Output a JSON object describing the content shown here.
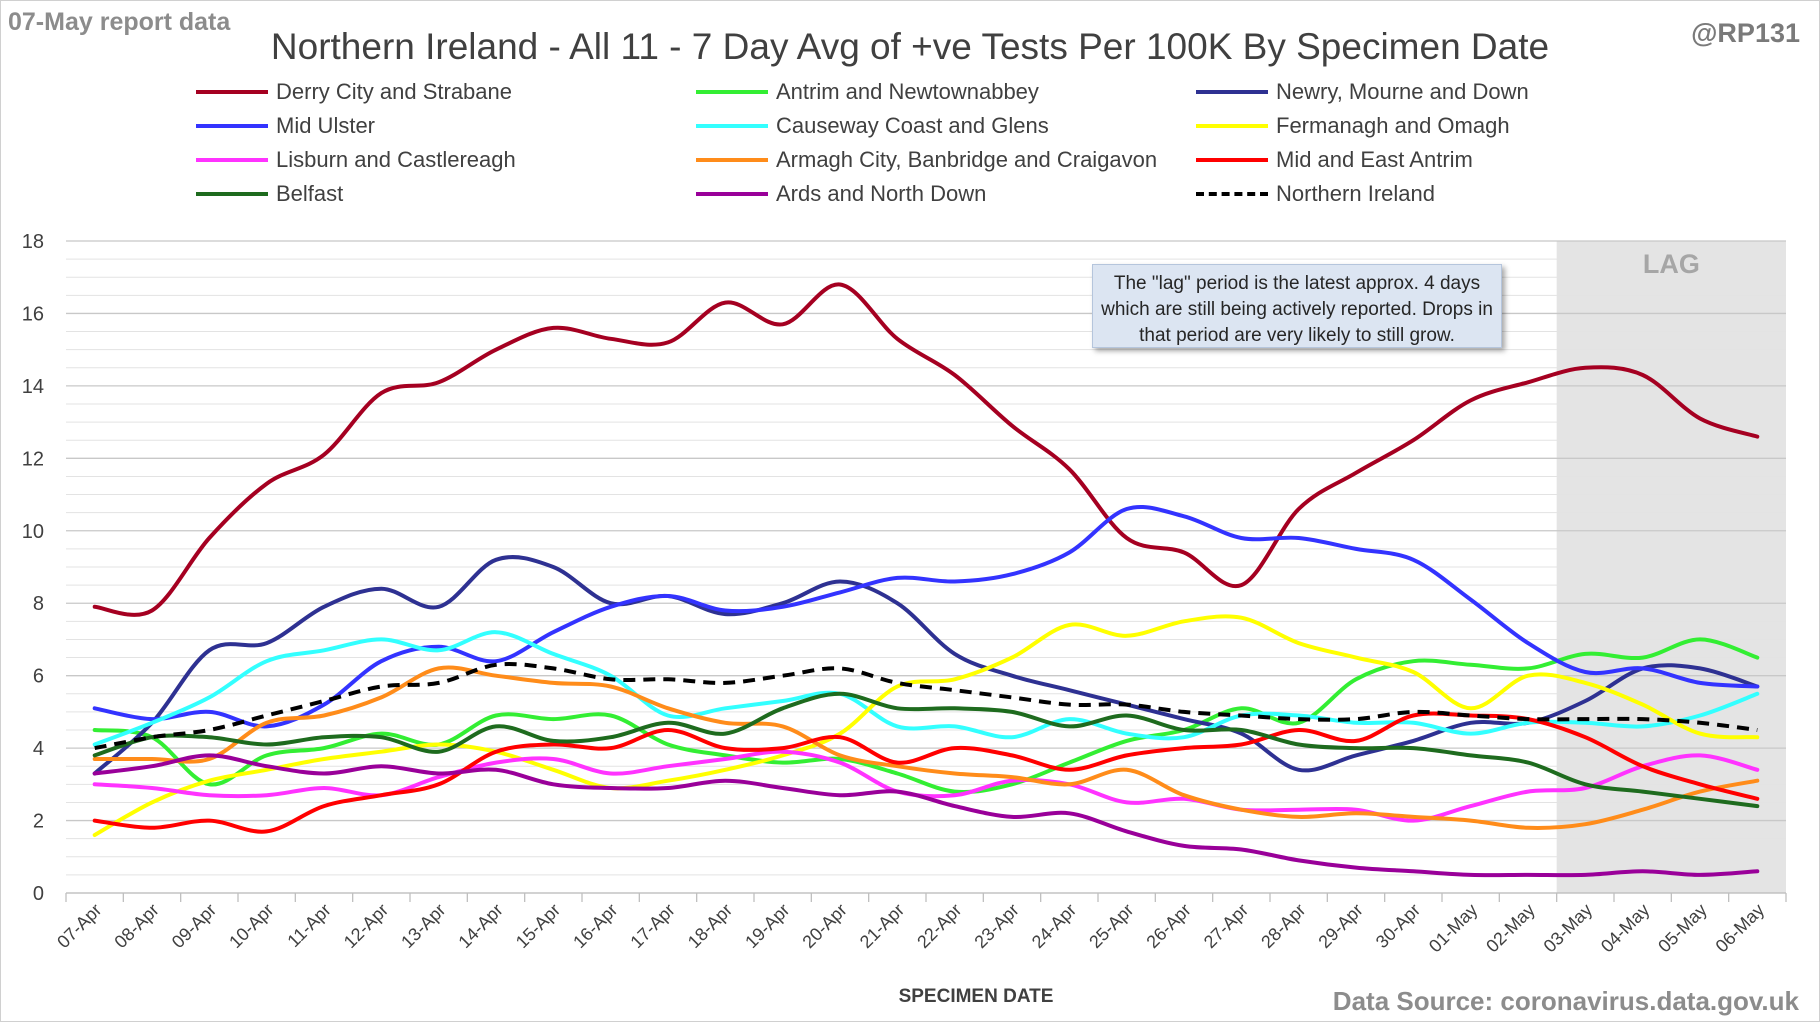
{
  "header": {
    "report_label": "07-May report data",
    "author_handle": "@RP131",
    "title": "Northern Ireland - All 11 - 7 Day Avg of +ve Tests Per 100K By Specimen Date",
    "source": "Data Source: coronavirus.data.gov.uk"
  },
  "annotations": {
    "lag_label": "LAG",
    "lag_note": "The \"lag\" period is the latest approx. 4 days which are still being actively reported.  Drops in that period are very likely to still grow."
  },
  "chart_data": {
    "type": "line",
    "title": "Northern Ireland - All 11 - 7 Day Avg of +ve Tests Per 100K By Specimen Date",
    "xlabel": "SPECIMEN DATE",
    "ylabel": "",
    "ylim": [
      0,
      18
    ],
    "yticks": [
      0,
      2,
      4,
      6,
      8,
      10,
      12,
      14,
      16,
      18
    ],
    "grid": true,
    "legend_position": "top",
    "lag_range": [
      "03-May",
      "06-May"
    ],
    "categories": [
      "07-Apr",
      "08-Apr",
      "09-Apr",
      "10-Apr",
      "11-Apr",
      "12-Apr",
      "13-Apr",
      "14-Apr",
      "15-Apr",
      "16-Apr",
      "17-Apr",
      "18-Apr",
      "19-Apr",
      "20-Apr",
      "21-Apr",
      "22-Apr",
      "23-Apr",
      "24-Apr",
      "25-Apr",
      "26-Apr",
      "27-Apr",
      "28-Apr",
      "29-Apr",
      "30-Apr",
      "01-May",
      "02-May",
      "03-May",
      "04-May",
      "05-May",
      "06-May"
    ],
    "series": [
      {
        "name": "Derry City and Strabane",
        "color": "#a50021",
        "dash": false,
        "values": [
          7.9,
          7.8,
          9.8,
          11.3,
          12.1,
          13.8,
          14.1,
          15.0,
          15.6,
          15.3,
          15.2,
          16.3,
          15.7,
          16.8,
          15.3,
          14.3,
          12.9,
          11.7,
          9.8,
          9.4,
          8.5,
          10.6,
          11.6,
          12.5,
          13.6,
          14.1,
          14.5,
          14.3,
          13.1,
          12.6
        ]
      },
      {
        "name": "Antrim and Newtownabbey",
        "color": "#33ee33",
        "dash": false,
        "values": [
          4.5,
          4.3,
          3.0,
          3.8,
          4.0,
          4.4,
          4.1,
          4.9,
          4.8,
          4.9,
          4.1,
          3.8,
          3.6,
          3.7,
          3.3,
          2.8,
          3.0,
          3.6,
          4.2,
          4.5,
          5.1,
          4.7,
          5.9,
          6.4,
          6.3,
          6.2,
          6.6,
          6.5,
          7.0,
          6.5
        ]
      },
      {
        "name": "Newry, Mourne and Down",
        "color": "#2e3192",
        "dash": false,
        "values": [
          3.3,
          4.7,
          6.7,
          6.9,
          7.9,
          8.4,
          7.9,
          9.2,
          9.0,
          8.0,
          8.2,
          7.7,
          8.0,
          8.6,
          8.0,
          6.6,
          6.0,
          5.6,
          5.2,
          4.8,
          4.4,
          3.4,
          3.8,
          4.2,
          4.7,
          4.7,
          5.3,
          6.2,
          6.2,
          5.7
        ]
      },
      {
        "name": "Mid Ulster",
        "color": "#3333ff",
        "dash": false,
        "values": [
          5.1,
          4.8,
          5.0,
          4.6,
          5.2,
          6.4,
          6.8,
          6.4,
          7.2,
          7.9,
          8.2,
          7.8,
          7.9,
          8.3,
          8.7,
          8.6,
          8.8,
          9.4,
          10.6,
          10.4,
          9.8,
          9.8,
          9.5,
          9.2,
          8.1,
          6.9,
          6.1,
          6.2,
          5.8,
          5.7
        ]
      },
      {
        "name": "Causeway Coast and Glens",
        "color": "#33ffff",
        "dash": false,
        "values": [
          4.1,
          4.7,
          5.4,
          6.4,
          6.7,
          7.0,
          6.7,
          7.2,
          6.6,
          6.0,
          4.9,
          5.1,
          5.3,
          5.5,
          4.6,
          4.6,
          4.3,
          4.8,
          4.4,
          4.3,
          4.9,
          4.9,
          4.7,
          4.7,
          4.4,
          4.7,
          4.7,
          4.6,
          4.9,
          5.5
        ]
      },
      {
        "name": "Fermanagh and Omagh",
        "color": "#ffff00",
        "dash": false,
        "values": [
          1.6,
          2.5,
          3.1,
          3.4,
          3.7,
          3.9,
          4.1,
          3.9,
          3.4,
          2.9,
          3.1,
          3.4,
          3.8,
          4.4,
          5.7,
          5.9,
          6.5,
          7.4,
          7.1,
          7.5,
          7.6,
          6.9,
          6.5,
          6.1,
          5.1,
          6.0,
          5.8,
          5.2,
          4.4,
          4.3
        ]
      },
      {
        "name": "Lisburn and Castlereagh",
        "color": "#ff33ff",
        "dash": false,
        "values": [
          3.0,
          2.9,
          2.7,
          2.7,
          2.9,
          2.7,
          3.2,
          3.6,
          3.7,
          3.3,
          3.5,
          3.7,
          3.9,
          3.6,
          2.8,
          2.7,
          3.1,
          3.0,
          2.5,
          2.6,
          2.3,
          2.3,
          2.3,
          2.0,
          2.4,
          2.8,
          2.9,
          3.5,
          3.8,
          3.4
        ]
      },
      {
        "name": "Armagh City, Banbridge and Craigavon",
        "color": "#ff8c1a",
        "dash": false,
        "values": [
          3.7,
          3.7,
          3.7,
          4.7,
          4.9,
          5.4,
          6.2,
          6.0,
          5.8,
          5.7,
          5.1,
          4.7,
          4.6,
          3.8,
          3.5,
          3.3,
          3.2,
          3.0,
          3.4,
          2.7,
          2.3,
          2.1,
          2.2,
          2.1,
          2.0,
          1.8,
          1.9,
          2.3,
          2.8,
          3.1
        ]
      },
      {
        "name": "Mid and East Antrim",
        "color": "#ff0000",
        "dash": false,
        "values": [
          2.0,
          1.8,
          2.0,
          1.7,
          2.4,
          2.7,
          3.0,
          3.9,
          4.1,
          4.0,
          4.5,
          4.0,
          4.0,
          4.3,
          3.6,
          4.0,
          3.8,
          3.4,
          3.8,
          4.0,
          4.1,
          4.5,
          4.2,
          4.9,
          4.9,
          4.8,
          4.3,
          3.5,
          3.0,
          2.6
        ]
      },
      {
        "name": "Belfast",
        "color": "#1e6b1e",
        "dash": false,
        "values": [
          3.8,
          4.3,
          4.3,
          4.1,
          4.3,
          4.3,
          3.9,
          4.6,
          4.2,
          4.3,
          4.7,
          4.4,
          5.1,
          5.5,
          5.1,
          5.1,
          5.0,
          4.6,
          4.9,
          4.5,
          4.5,
          4.1,
          4.0,
          4.0,
          3.8,
          3.6,
          3.0,
          2.8,
          2.6,
          2.4
        ]
      },
      {
        "name": "Ards and North Down",
        "color": "#990099",
        "dash": false,
        "values": [
          3.3,
          3.5,
          3.8,
          3.5,
          3.3,
          3.5,
          3.3,
          3.4,
          3.0,
          2.9,
          2.9,
          3.1,
          2.9,
          2.7,
          2.8,
          2.4,
          2.1,
          2.2,
          1.7,
          1.3,
          1.2,
          0.9,
          0.7,
          0.6,
          0.5,
          0.5,
          0.5,
          0.6,
          0.5,
          0.6
        ]
      },
      {
        "name": "Northern Ireland",
        "color": "#000000",
        "dash": true,
        "values": [
          4.0,
          4.3,
          4.5,
          4.9,
          5.3,
          5.7,
          5.8,
          6.3,
          6.2,
          5.9,
          5.9,
          5.8,
          6.0,
          6.2,
          5.8,
          5.6,
          5.4,
          5.2,
          5.2,
          5.0,
          4.9,
          4.8,
          4.8,
          5.0,
          4.9,
          4.8,
          4.8,
          4.8,
          4.7,
          4.5
        ]
      }
    ]
  }
}
